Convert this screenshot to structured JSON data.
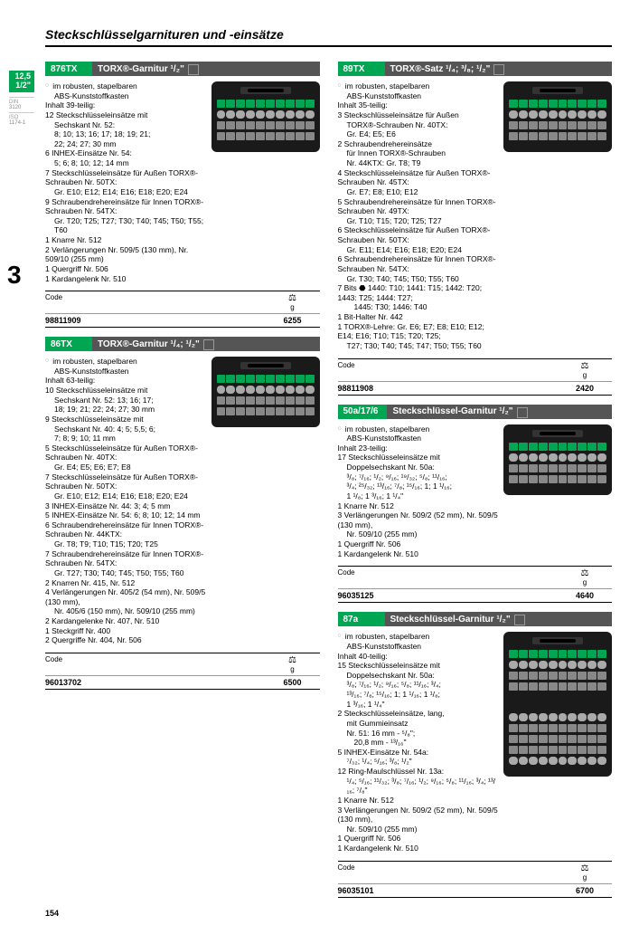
{
  "pageTitle": "Steckschlüsselgarnituren und -einsätze",
  "pageNumber": "154",
  "sectionNumber": "3",
  "sidebarBadge": {
    "top": "12,5",
    "bottom": "1/2\""
  },
  "standards": [
    {
      "label": "DIN",
      "val": "3120"
    },
    {
      "label": "ISO",
      "val": "1174-1"
    }
  ],
  "colors": {
    "accent": "#00a651",
    "headerBg": "#555555"
  },
  "tableHeaders": {
    "code": "Code",
    "weightUnit": "g",
    "weightIcon": "⚖"
  },
  "products": [
    {
      "col": 0,
      "code": "876TX",
      "title": "TORX®-Garnitur ¹/₂\"",
      "lines": [
        {
          "t": "bullet",
          "txt": "im robusten, stapelbaren"
        },
        {
          "t": "indent1",
          "txt": "ABS-Kunststoffkasten"
        },
        {
          "t": "line",
          "txt": "Inhalt 39-teilig:"
        },
        {
          "t": "line",
          "txt": "12 Steckschlüsseleinsätze mit"
        },
        {
          "t": "indent1",
          "txt": "Sechskant Nr. 52:"
        },
        {
          "t": "indent1",
          "txt": "8; 10; 13; 16; 17; 18; 19; 21;"
        },
        {
          "t": "indent1",
          "txt": "22; 24; 27; 30 mm"
        },
        {
          "t": "line",
          "txt": "6 INHEX-Einsätze Nr. 54:"
        },
        {
          "t": "indent1",
          "txt": "5; 6; 8; 10; 12; 14 mm"
        },
        {
          "t": "line",
          "txt": "7 Steckschlüsseleinsätze für Außen TORX®-Schrauben Nr. 50TX:"
        },
        {
          "t": "indent1",
          "txt": "Gr. E10; E12; E14; E16; E18; E20; E24"
        },
        {
          "t": "line",
          "txt": "9 Schraubendrehereinsätze für Innen TORX®-Schrauben Nr. 54TX:"
        },
        {
          "t": "indent1",
          "txt": "Gr. T20; T25; T27; T30; T40; T45; T50; T55; T60"
        },
        {
          "t": "line",
          "txt": "1 Knarre Nr. 512"
        },
        {
          "t": "line",
          "txt": "2 Verlängerungen Nr. 509/5 (130 mm), Nr. 509/10 (255 mm)"
        },
        {
          "t": "line",
          "txt": "1 Quergriff Nr. 506"
        },
        {
          "t": "line",
          "txt": "1 Kardangelenk Nr. 510"
        }
      ],
      "tableCode": "98811909",
      "tableWeight": "6255"
    },
    {
      "col": 0,
      "code": "86TX",
      "title": "TORX®-Garnitur ¹/₄; ¹/₂\"",
      "lines": [
        {
          "t": "bullet",
          "txt": "im robusten, stapelbaren"
        },
        {
          "t": "indent1",
          "txt": "ABS-Kunststoffkasten"
        },
        {
          "t": "line",
          "txt": "Inhalt 63-teilig:"
        },
        {
          "t": "line",
          "txt": "10 Steckschlüsseleinsätze mit"
        },
        {
          "t": "indent1",
          "txt": "Sechskant Nr. 52: 13; 16; 17;"
        },
        {
          "t": "indent1",
          "txt": "18; 19; 21; 22; 24; 27; 30 mm"
        },
        {
          "t": "line",
          "txt": "9 Steckschlüsseleinsätze mit"
        },
        {
          "t": "indent1",
          "txt": "Sechskant Nr. 40: 4; 5; 5,5; 6;"
        },
        {
          "t": "indent1",
          "txt": "7; 8; 9; 10; 11 mm"
        },
        {
          "t": "line",
          "txt": "5 Steckschlüsseleinsätze für Außen TORX®-Schrauben Nr. 40TX:"
        },
        {
          "t": "indent1",
          "txt": "Gr. E4; E5; E6; E7; E8"
        },
        {
          "t": "line",
          "txt": "7 Steckschlüsseleinsätze für Außen TORX®-Schrauben Nr. 50TX:"
        },
        {
          "t": "indent1",
          "txt": "Gr. E10; E12; E14; E16; E18; E20; E24"
        },
        {
          "t": "line",
          "txt": "3 INHEX-Einsätze Nr. 44: 3; 4; 5 mm"
        },
        {
          "t": "line",
          "txt": "5 INHEX-Einsätze Nr. 54: 6; 8; 10; 12; 14 mm"
        },
        {
          "t": "line",
          "txt": "6 Schraubendrehereinsätze für Innen TORX®-Schrauben Nr. 44KTX:"
        },
        {
          "t": "indent1",
          "txt": "Gr. T8; T9; T10; T15; T20; T25"
        },
        {
          "t": "line",
          "txt": "7 Schraubendrehereinsätze für Innen TORX®-Schrauben Nr. 54TX:"
        },
        {
          "t": "indent1",
          "txt": "Gr. T27; T30; T40; T45; T50; T55; T60"
        },
        {
          "t": "line",
          "txt": "2 Knarren Nr. 415, Nr. 512"
        },
        {
          "t": "line",
          "txt": "4 Verlängerungen Nr. 405/2 (54 mm), Nr. 509/5 (130 mm),"
        },
        {
          "t": "indent1",
          "txt": "Nr. 405/6 (150 mm), Nr. 509/10 (255 mm)"
        },
        {
          "t": "line",
          "txt": "2 Kardangelenke Nr. 407, Nr. 510"
        },
        {
          "t": "line",
          "txt": "1 Steckgriff Nr. 400"
        },
        {
          "t": "line",
          "txt": "2 Quergriffe Nr. 404, Nr. 506"
        }
      ],
      "tableCode": "96013702",
      "tableWeight": "6500"
    },
    {
      "col": 1,
      "code": "89TX",
      "title": "TORX®-Satz ¹/₄; ³/₈; ¹/₂\"",
      "lines": [
        {
          "t": "bullet",
          "txt": "im robusten, stapelbaren"
        },
        {
          "t": "indent1",
          "txt": "ABS-Kunststoffkasten"
        },
        {
          "t": "line",
          "txt": "Inhalt 35-teilig:"
        },
        {
          "t": "line",
          "txt": "3 Steckschlüsseleinsätze für Außen"
        },
        {
          "t": "indent1",
          "txt": "TORX®-Schrauben Nr. 40TX:"
        },
        {
          "t": "indent1",
          "txt": "Gr. E4; E5; E6"
        },
        {
          "t": "line",
          "txt": "2 Schraubendrehereinsätze"
        },
        {
          "t": "indent1",
          "txt": "für Innen TORX®-Schrauben"
        },
        {
          "t": "indent1",
          "txt": "Nr. 44KTX: Gr. T8; T9"
        },
        {
          "t": "line",
          "txt": "4 Steckschlüsseleinsätze für Außen TORX®-Schrauben Nr. 45TX:"
        },
        {
          "t": "indent1",
          "txt": "Gr. E7; E8; E10; E12"
        },
        {
          "t": "line",
          "txt": "5 Schraubendrehereinsätze für Innen TORX®-Schrauben Nr. 49TX:"
        },
        {
          "t": "indent1",
          "txt": "Gr. T10; T15; T20; T25; T27"
        },
        {
          "t": "line",
          "txt": "6 Steckschlüsseleinsätze für Außen TORX®-Schrauben Nr. 50TX:"
        },
        {
          "t": "indent1",
          "txt": "Gr. E11; E14; E16; E18; E20; E24"
        },
        {
          "t": "line",
          "txt": "6 Schraubendrehereinsätze für Innen TORX®-Schrauben Nr. 54TX:"
        },
        {
          "t": "indent1",
          "txt": "Gr. T30; T40; T45; T50; T55; T60"
        },
        {
          "t": "line",
          "txt": "7 Bits ⬣ 1440: T10; 1441: T15; 1442: T20; 1443: T25; 1444: T27;"
        },
        {
          "t": "indent2",
          "txt": "1445: T30; 1446: T40"
        },
        {
          "t": "line",
          "txt": "1 Bit-Halter Nr. 442"
        },
        {
          "t": "line",
          "txt": "1 TORX®-Lehre: Gr. E6; E7; E8; E10; E12; E14; E16; T10; T15; T20; T25;"
        },
        {
          "t": "indent1",
          "txt": "T27; T30; T40; T45; T47; T50; T55; T60"
        }
      ],
      "tableCode": "98811908",
      "tableWeight": "2420"
    },
    {
      "col": 1,
      "code": "50a/17/6",
      "title": "Steckschlüssel-Garnitur ¹/₂\"",
      "lines": [
        {
          "t": "bullet",
          "txt": "im robusten, stapelbaren"
        },
        {
          "t": "indent1",
          "txt": "ABS-Kunststoffkasten"
        },
        {
          "t": "line",
          "txt": "Inhalt 23-teilig:"
        },
        {
          "t": "line",
          "txt": "17 Steckschlüsseleinsätze mit"
        },
        {
          "t": "indent1",
          "txt": "Doppelsechskant Nr. 50a:"
        },
        {
          "t": "indent1",
          "txt": "³/₈; ⁷/₁₆; ¹/₂; ⁹/₁₆; ¹⁹/₃₂; ⁵/₈; ¹¹/₁₆;"
        },
        {
          "t": "indent1",
          "txt": "³/₄; ²⁵/₃₂; ¹³/₁₆; ⁷/₈; ¹⁵/₁₆; 1; 1 ¹/₁₆;"
        },
        {
          "t": "indent1",
          "txt": "1 ¹/₈; 1 ³/₁₆; 1 ¹/₄\""
        },
        {
          "t": "line",
          "txt": "1 Knarre Nr. 512"
        },
        {
          "t": "line",
          "txt": "3 Verlängerungen Nr. 509/2 (52 mm), Nr. 509/5 (130 mm),"
        },
        {
          "t": "indent1",
          "txt": "Nr. 509/10 (255 mm)"
        },
        {
          "t": "line",
          "txt": "1 Quergriff Nr. 506"
        },
        {
          "t": "line",
          "txt": "1 Kardangelenk Nr. 510"
        }
      ],
      "tableCode": "96035125",
      "tableWeight": "4640"
    },
    {
      "col": 1,
      "code": "87a",
      "title": "Steckschlüssel-Garnitur ¹/₂\"",
      "tallImg": true,
      "lines": [
        {
          "t": "bullet",
          "txt": "im robusten, stapelbaren"
        },
        {
          "t": "indent1",
          "txt": "ABS-Kunststoffkasten"
        },
        {
          "t": "line",
          "txt": "Inhalt 40-teilig:"
        },
        {
          "t": "line",
          "txt": "15 Steckschlüsseleinsätze mit"
        },
        {
          "t": "indent1",
          "txt": "Doppelsechskant Nr. 50a:"
        },
        {
          "t": "indent1",
          "txt": "³/₈; ⁷/₁₆; ¹/₂; ⁹/₁₆; ⁵/₈; ¹¹/₁₆; ³/₄;"
        },
        {
          "t": "indent1",
          "txt": "¹³/₁₆; ⁷/₈; ¹⁵/₁₆; 1; 1 ¹/₁₆; 1 ¹/₈;"
        },
        {
          "t": "indent1",
          "txt": "1 ³/₁₆; 1 ¹/₄\""
        },
        {
          "t": "line",
          "txt": "2 Steckschlüsseleinsätze, lang,"
        },
        {
          "t": "indent1",
          "txt": "mit Gummieinsatz"
        },
        {
          "t": "indent1",
          "txt": "Nr. 51: 16 mm - ⁵/₈\";"
        },
        {
          "t": "indent2",
          "txt": "20,8 mm - ¹³/₁₆\""
        },
        {
          "t": "line",
          "txt": "5 INHEX-Einsätze Nr. 54a:"
        },
        {
          "t": "indent1",
          "txt": "⁷/₃₂; ¹/₄; ⁵/₁₆; ³/₈; ¹/₂\""
        },
        {
          "t": "line",
          "txt": "12 Ring-Maulschlüssel Nr. 13a:"
        },
        {
          "t": "indent1",
          "txt": "¹/₄; ⁵/₁₆; ¹¹/₃₂; ³/₈; ⁷/₁₆; ¹/₂; ⁹/₁₆; ⁵/₈; ¹¹/₁₆; ³/₄; ¹³/₁₆; ⁷/₈\""
        },
        {
          "t": "line",
          "txt": "1 Knarre Nr. 512"
        },
        {
          "t": "line",
          "txt": "3 Verlängerungen Nr. 509/2 (52 mm), Nr. 509/5 (130 mm),"
        },
        {
          "t": "indent1",
          "txt": "Nr. 509/10 (255 mm)"
        },
        {
          "t": "line",
          "txt": "1 Quergriff Nr. 506"
        },
        {
          "t": "line",
          "txt": "1 Kardangelenk Nr. 510"
        }
      ],
      "tableCode": "96035101",
      "tableWeight": "6700"
    }
  ]
}
